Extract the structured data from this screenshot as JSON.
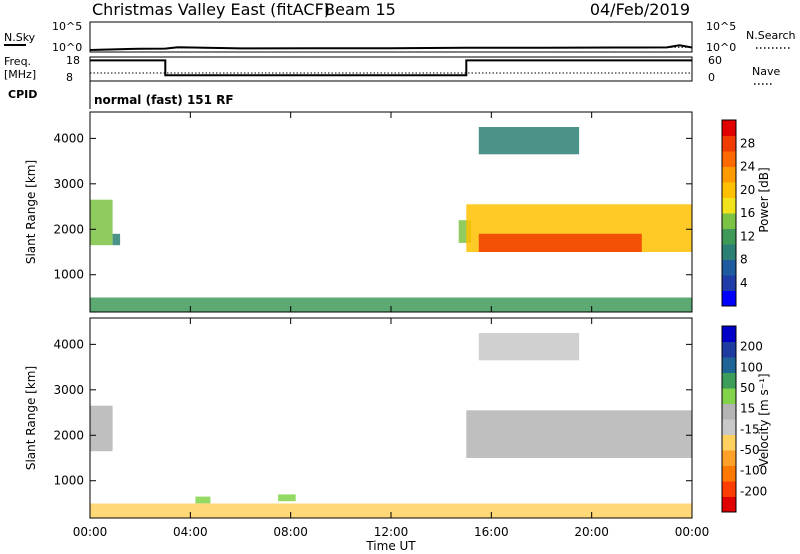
{
  "header": {
    "title": "Christmas Valley East (fitACF)",
    "beam": "Beam 15",
    "date": "04/Feb/2019"
  },
  "noise_panel": {
    "left_label": "N.Sky",
    "right_label": "N.Search",
    "left_ticks": [
      "10^5",
      "10^0"
    ],
    "right_ticks": [
      "10^5",
      "10^0"
    ]
  },
  "freq_panel": {
    "left_label_1": "Freq.",
    "left_label_2": "[MHz]",
    "right_label": "Nave",
    "left_ticks": [
      "18",
      "8"
    ],
    "right_ticks": [
      "60",
      "0"
    ]
  },
  "cpid_panel": {
    "label": "CPID",
    "program": "normal (fast) 151 RF"
  },
  "colors": {
    "frame": "#000000",
    "power_scale": [
      "#0000ff",
      "#1f3ca8",
      "#1f5c9f",
      "#2b7f74",
      "#3f9a5a",
      "#7cc243",
      "#f2e21c",
      "#ffc000",
      "#ff9a00",
      "#ff6a00",
      "#f03c00",
      "#e00000"
    ],
    "velocity_scale": [
      "#e00000",
      "#ff3c00",
      "#ff7800",
      "#ffa028",
      "#ffd260",
      "#c8c8c8",
      "#b4b4b4",
      "#82d24a",
      "#3c9c5a",
      "#1e6496",
      "#1e3ca0",
      "#0000c8"
    ]
  },
  "chart_data": [
    {
      "type": "line",
      "name": "noise",
      "x": [
        0,
        2,
        3,
        3.5,
        6,
        9,
        12,
        15,
        18,
        21,
        23,
        23.5,
        24
      ],
      "n_sky": [
        1,
        1.8,
        1.9,
        3.5,
        2.0,
        2.2,
        2.2,
        2.6,
        2.8,
        3.0,
        3.2,
        8,
        3.0
      ],
      "n_search": [
        1.2,
        1.8,
        2.0,
        2.5,
        2.1,
        2.3,
        2.4,
        2.8,
        3.0,
        3.2,
        3.3,
        3.5,
        3.2
      ]
    },
    {
      "type": "line",
      "name": "frequency",
      "x": [
        0,
        3.0,
        3.0,
        15.0,
        15.0,
        24
      ],
      "frequency_mhz": [
        17.3,
        17.3,
        9.9,
        9.9,
        17.3,
        17.3
      ],
      "nave": [
        18,
        18,
        18,
        18,
        18,
        18
      ]
    },
    {
      "type": "heatmap",
      "quantity": "power",
      "title": "",
      "xlabel": "",
      "ylabel": "Slant Range [km]",
      "xlim": [
        0,
        24
      ],
      "ylim": [
        180,
        4580
      ],
      "y_ticks": [
        1000,
        2000,
        3000,
        4000
      ],
      "colorbar_label": "Power [dB]",
      "colorbar_ticks": [
        "28",
        "24",
        "20",
        "16",
        "12",
        "8",
        "4"
      ],
      "colorbar_range": [
        0,
        32
      ],
      "regions": [
        {
          "x": [
            0.0,
            0.9
          ],
          "y": [
            1650,
            2650
          ],
          "level": 14
        },
        {
          "x": [
            0.9,
            1.2
          ],
          "y": [
            1650,
            1900
          ],
          "level": 10
        },
        {
          "x": [
            14.7,
            15.2
          ],
          "y": [
            1700,
            2200
          ],
          "level": 14
        },
        {
          "x": [
            15.0,
            24.0
          ],
          "y": [
            1500,
            2550
          ],
          "level": 20
        },
        {
          "x": [
            15.5,
            22.0
          ],
          "y": [
            1500,
            1900
          ],
          "level": 28
        },
        {
          "x": [
            15.5,
            19.5
          ],
          "y": [
            3650,
            4250
          ],
          "level": 10
        },
        {
          "x": [
            0.0,
            24.0
          ],
          "y": [
            180,
            500
          ],
          "level": 12
        }
      ]
    },
    {
      "type": "heatmap",
      "quantity": "velocity",
      "title": "",
      "xlabel": "Time UT",
      "ylabel": "Slant Range [km]",
      "xlim": [
        0,
        24
      ],
      "ylim": [
        180,
        4580
      ],
      "x_ticks": [
        "00:00",
        "04:00",
        "08:00",
        "12:00",
        "16:00",
        "20:00",
        "00:00"
      ],
      "y_ticks": [
        1000,
        2000,
        3000,
        4000
      ],
      "colorbar_label": "Velocity [m s⁻¹]",
      "colorbar_ticks": [
        "200",
        "100",
        "50",
        "15",
        "-15",
        "-50",
        "-100",
        "-200"
      ],
      "colorbar_range": [
        -250,
        250
      ],
      "regions": [
        {
          "x": [
            0.0,
            0.9
          ],
          "y": [
            1650,
            2650
          ],
          "level": 0
        },
        {
          "x": [
            15.0,
            24.0
          ],
          "y": [
            1500,
            2550
          ],
          "level": 0
        },
        {
          "x": [
            15.5,
            19.5
          ],
          "y": [
            3650,
            4250
          ],
          "level": -40
        },
        {
          "x": [
            0.0,
            24.0
          ],
          "y": [
            180,
            500
          ],
          "level": -60
        },
        {
          "x": [
            4.2,
            4.8
          ],
          "y": [
            500,
            650
          ],
          "level": 60
        },
        {
          "x": [
            7.5,
            8.2
          ],
          "y": [
            550,
            700
          ],
          "level": 60
        }
      ]
    }
  ]
}
